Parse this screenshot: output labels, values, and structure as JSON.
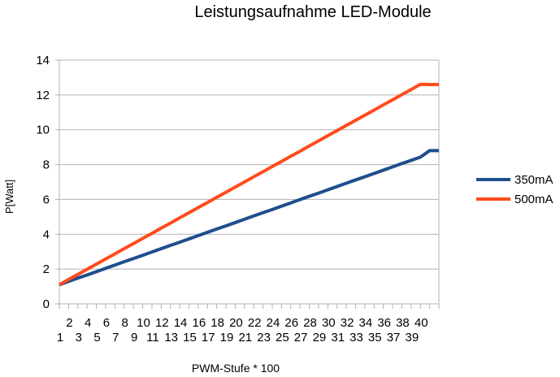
{
  "chart_data": {
    "type": "line",
    "title": "Leistungsaufnahme LED-Module",
    "xlabel": "PWM-Stufe * 100",
    "ylabel": "P[Watt]",
    "ylim": [
      0,
      14
    ],
    "yticks": [
      0,
      2,
      4,
      6,
      8,
      10,
      12,
      14
    ],
    "grid": "horizontal",
    "legend_position": "right",
    "categories": [
      "1",
      "2",
      "3",
      "4",
      "5",
      "6",
      "7",
      "8",
      "9",
      "10",
      "11",
      "12",
      "13",
      "14",
      "15",
      "16",
      "17",
      "18",
      "19",
      "20",
      "21",
      "22",
      "23",
      "24",
      "25",
      "26",
      "27",
      "28",
      "29",
      "30",
      "31",
      "32",
      "33",
      "34",
      "35",
      "36",
      "37",
      "38",
      "39",
      "40",
      "",
      ""
    ],
    "series": [
      {
        "name": "350mA",
        "color": "#1f4e8c",
        "values": [
          1.1,
          1.29,
          1.48,
          1.66,
          1.85,
          2.04,
          2.23,
          2.42,
          2.6,
          2.79,
          2.98,
          3.17,
          3.36,
          3.54,
          3.73,
          3.92,
          4.11,
          4.3,
          4.48,
          4.67,
          4.86,
          5.05,
          5.24,
          5.42,
          5.61,
          5.8,
          5.99,
          6.18,
          6.36,
          6.55,
          6.74,
          6.93,
          7.12,
          7.3,
          7.49,
          7.68,
          7.87,
          8.06,
          8.24,
          8.43,
          8.8,
          8.8
        ]
      },
      {
        "name": "500mA",
        "color": "#ff4a1c",
        "values": [
          1.1,
          1.4,
          1.69,
          1.99,
          2.28,
          2.58,
          2.87,
          3.17,
          3.46,
          3.76,
          4.05,
          4.35,
          4.64,
          4.94,
          5.23,
          5.53,
          5.82,
          6.12,
          6.41,
          6.71,
          7.0,
          7.3,
          7.59,
          7.89,
          8.18,
          8.48,
          8.77,
          9.07,
          9.36,
          9.66,
          9.95,
          10.25,
          10.54,
          10.84,
          11.13,
          11.43,
          11.72,
          12.02,
          12.31,
          12.61,
          12.6,
          12.6
        ]
      }
    ]
  }
}
